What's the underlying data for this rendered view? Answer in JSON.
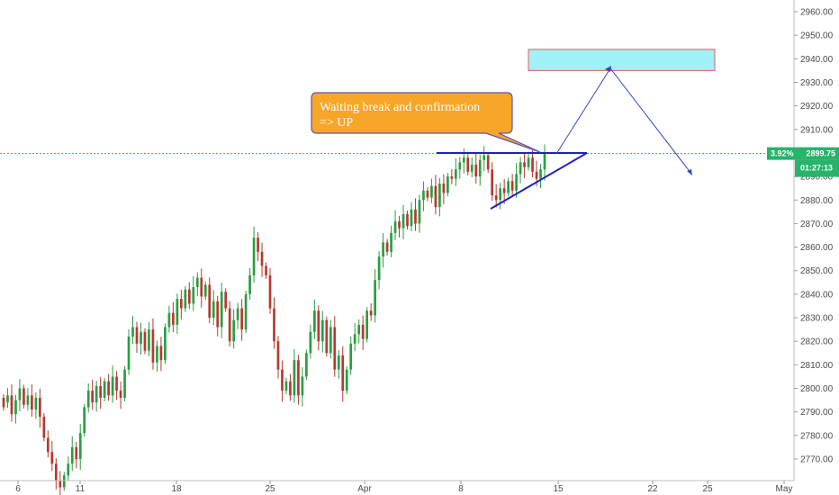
{
  "chart_data": {
    "type": "candlestick",
    "y_axis": {
      "ticks": [
        2770,
        2780,
        2790,
        2800,
        2810,
        2820,
        2830,
        2840,
        2850,
        2860,
        2870,
        2880,
        2890,
        2900,
        2910,
        2920,
        2930,
        2940,
        2950,
        2960
      ],
      "tick_labels": [
        "2770.00",
        "2780.00",
        "2790.00",
        "2800.00",
        "2810.00",
        "2820.00",
        "2830.00",
        "2840.00",
        "2850.00",
        "2860.00",
        "2870.00",
        "2880.00",
        "2890.00",
        "2900.00",
        "2910.00",
        "2920.00",
        "2930.00",
        "2940.00",
        "2950.00",
        "2960.00"
      ],
      "range": [
        2763,
        2964
      ],
      "position": "right"
    },
    "x_axis": {
      "labels": [
        "6",
        "11",
        "18",
        "25",
        "Apr",
        "8",
        "15",
        "22",
        "25",
        "May"
      ]
    },
    "current_price": {
      "label": "2899.75",
      "change": "3.92%",
      "value": 2899.75,
      "color": "#26b36b"
    },
    "countdown": {
      "label": "01:27:13"
    },
    "up_color": "#2a9d43",
    "down_color": "#b53a2e",
    "annotation": {
      "line1": "Waiting break and confirmation",
      "line2": "=> UP",
      "fill": "#f7a629",
      "border": "#5c54b5"
    },
    "target_zone": {
      "price_low": 2935,
      "price_high": 2944,
      "fill": "#9ff2f6",
      "border": "#e06060"
    },
    "resistance_price": 2900,
    "projection_color": "#3546c9",
    "triangle_color": "#2020c0"
  }
}
